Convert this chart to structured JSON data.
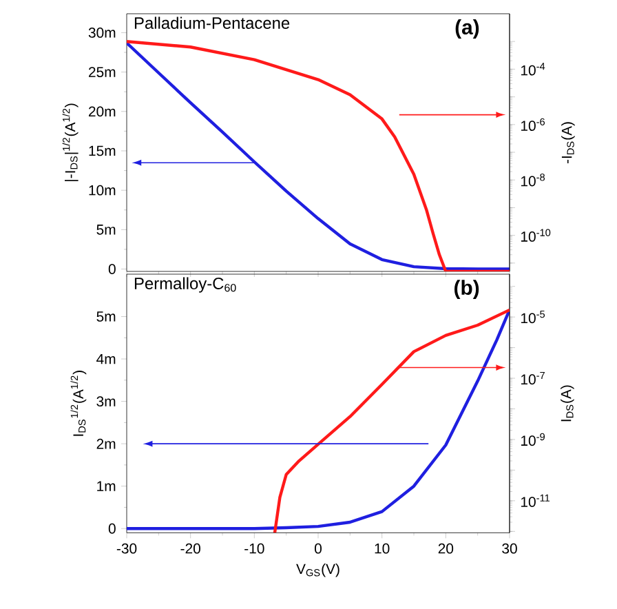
{
  "chart_data": [
    {
      "type": "line",
      "annotations": [
        "Palladium-Pentacene",
        "(a)"
      ],
      "ylabel": "|-I$_{DS}$|$^{1/2}$(A$^{1/2}$)",
      "y2label": "-I$_{DS}$(A)",
      "log": "y2",
      "tick_labels": "y",
      "xlim": [
        -30,
        30
      ],
      "xticks": [
        -30,
        -20,
        -10,
        0,
        10,
        20,
        30
      ],
      "ylim": [
        -0.3,
        32.4
      ],
      "yticks": [
        0,
        {
          "value": 5,
          "label": "5m"
        },
        {
          "value": 10,
          "label": "10m"
        },
        {
          "value": 15,
          "label": "15m"
        },
        {
          "value": 20,
          "label": "20m"
        },
        {
          "value": 25,
          "label": "25m"
        },
        {
          "value": 30,
          "label": "30m"
        }
      ],
      "y2lim": [
        5e-12,
        0.01
      ],
      "y2ticks": [
        {
          "value": 1e-11,
          "label": null
        },
        {
          "value": 1e-10,
          "label": "10$^{-10}$"
        },
        {
          "value": 1e-09,
          "label": null
        },
        {
          "value": 1e-08,
          "label": "10$^{-8}$"
        },
        {
          "value": 1e-07,
          "label": null
        },
        {
          "value": 1e-06,
          "label": "10$^{-6}$"
        },
        {
          "value": 1e-05,
          "label": null
        },
        {
          "value": 0.0001,
          "label": "10$^{-4}$"
        },
        {
          "value": 0.001,
          "label": null
        }
      ],
      "series": [
        {
          "color": "#1f1fe0",
          "axis": "y",
          "x": [
            -30,
            -25,
            -20,
            -15,
            -10,
            -5,
            0,
            5,
            10,
            15,
            20,
            25,
            30
          ],
          "values": [
            28.7,
            24.9,
            21.1,
            17.4,
            13.6,
            9.9,
            6.4,
            3.2,
            1.2,
            0.3,
            0.05,
            0,
            0
          ]
        },
        {
          "color": "#ff1a1a",
          "axis": "y2",
          "x": [
            -30,
            -20,
            -10,
            0,
            5,
            10,
            12,
            15,
            17,
            18,
            19,
            20,
            25,
            30
          ],
          "values": [
            0.001,
            0.00063,
            0.00022,
            4.2e-05,
            1.2e-05,
            1.6e-06,
            3.6e-07,
            1.6e-08,
            8e-10,
            1.2e-10,
            2e-11,
            5e-12,
            5e-12,
            5e-12
          ]
        }
      ]
    },
    {
      "type": "line",
      "annotations": [
        "Permalloy-C$_{60}$",
        "(b)"
      ],
      "xlabel": "V$_{GS}$(V)",
      "ylabel": "I$_{DS}$$^{1/2}$(A$^{1/2}$)",
      "y2label": "I$_{DS}$(A)",
      "log": "y2",
      "xlim": [
        -30,
        30
      ],
      "xticks": [
        -30,
        -20,
        -10,
        0,
        10,
        20,
        30
      ],
      "ylim": [
        -0.1,
        6
      ],
      "yticks": [
        0,
        {
          "value": 1,
          "label": "1m"
        },
        {
          "value": 2,
          "label": "2m"
        },
        {
          "value": 3,
          "label": "3m"
        },
        {
          "value": 4,
          "label": "4m"
        },
        {
          "value": 5,
          "label": "5m"
        }
      ],
      "y2lim": [
        9e-13,
        0.00025
      ],
      "y2ticks": [
        {
          "value": 1e-12,
          "label": null
        },
        {
          "value": 1e-11,
          "label": "10$^{-11}$"
        },
        {
          "value": 1e-10,
          "label": null
        },
        {
          "value": 1e-09,
          "label": "10$^{-9}$"
        },
        {
          "value": 1e-08,
          "label": null
        },
        {
          "value": 1e-07,
          "label": "10$^{-7}$"
        },
        {
          "value": 1e-06,
          "label": null
        },
        {
          "value": 1e-05,
          "label": "10$^{-5}$"
        },
        {
          "value": 0.0001,
          "label": null
        }
      ],
      "series": [
        {
          "color": "#1f1fe0",
          "axis": "y",
          "x": [
            -30,
            -20,
            -10,
            -5,
            0,
            5,
            10,
            15,
            20,
            25,
            28,
            30
          ],
          "values": [
            0,
            0,
            0,
            0.02,
            0.05,
            0.15,
            0.4,
            1.0,
            1.97,
            3.48,
            4.45,
            5.16
          ]
        },
        {
          "color": "#ff1a1a",
          "axis": "y2",
          "x": [
            -6.8,
            -6,
            -5,
            -3,
            0,
            5,
            10,
            15,
            20,
            25,
            30
          ],
          "values": [
            9e-13,
            1.3e-11,
            7.2e-11,
            2e-10,
            7e-10,
            5.6e-09,
            6.3e-08,
            7.4e-07,
            2.5e-06,
            5.4e-06,
            1.7e-05
          ]
        }
      ]
    }
  ]
}
